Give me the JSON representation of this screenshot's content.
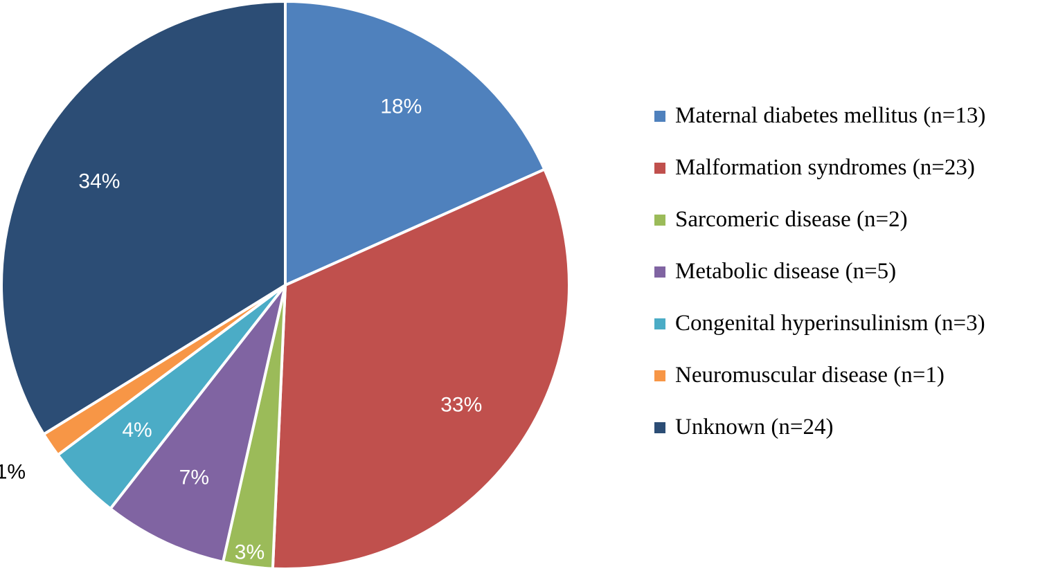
{
  "chart_data": {
    "type": "pie",
    "title": "",
    "slices": [
      {
        "label": "Maternal diabetes mellitus (n=13)",
        "value": 13,
        "percent_label": "18%",
        "color": "#4F81BD",
        "label_color": "#FFFFFF"
      },
      {
        "label": "Malformation syndromes (n=23)",
        "value": 23,
        "percent_label": "33%",
        "color": "#C0504D",
        "label_color": "#FFFFFF"
      },
      {
        "label": "Sarcomeric disease (n=2)",
        "value": 2,
        "percent_label": "3%",
        "color": "#9BBB59",
        "label_color": "#FFFFFF"
      },
      {
        "label": "Metabolic disease (n=5)",
        "value": 5,
        "percent_label": "7%",
        "color": "#8064A2",
        "label_color": "#FFFFFF"
      },
      {
        "label": "Congenital hyperinsulinism (n=3)",
        "value": 3,
        "percent_label": "4%",
        "color": "#4BACC6",
        "label_color": "#FFFFFF"
      },
      {
        "label": "Neuromuscular disease (n=1)",
        "value": 1,
        "percent_label": "1%",
        "color": "#F79646",
        "label_color": "#000000"
      },
      {
        "label": "Unknown (n=24)",
        "value": 24,
        "percent_label": "34%",
        "color": "#2C4D75",
        "label_color": "#FFFFFF"
      }
    ],
    "start_angle_deg": 0,
    "direction": "clockwise",
    "slice_border_color": "#FFFFFF",
    "legend_position": "right"
  }
}
